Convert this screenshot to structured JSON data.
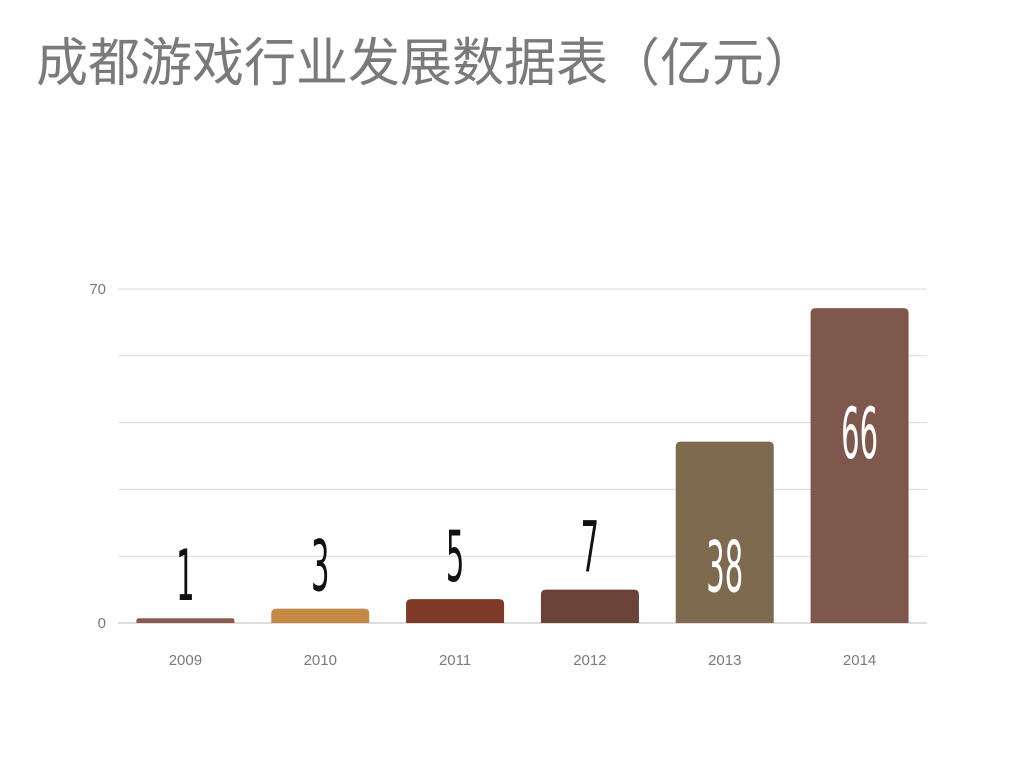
{
  "chart_data": {
    "type": "bar",
    "title": "成都游戏行业发展数据表（亿元）",
    "categories": [
      "2009",
      "2010",
      "2011",
      "2012",
      "2013",
      "2014"
    ],
    "values": [
      1,
      3,
      5,
      7,
      38,
      66
    ],
    "bar_colors": [
      "#8a5a4c",
      "#c48a45",
      "#7f3a27",
      "#6b4238",
      "#7d6a4f",
      "#7e584d"
    ],
    "ylim": [
      0,
      70
    ],
    "yticks_labeled": [
      "0",
      "70"
    ],
    "gridline_count": 6,
    "grid": true,
    "xlabel": "",
    "ylabel": "",
    "data_label_color_outside": "#111111",
    "data_label_color_inside": "#ffffff"
  }
}
